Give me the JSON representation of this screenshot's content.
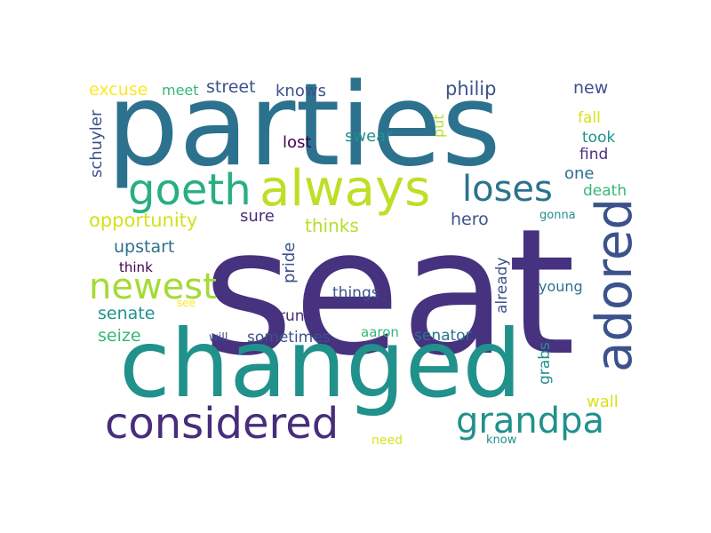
{
  "words": [
    {
      "text": "seat",
      "color": "#46327e"
    },
    {
      "text": "parties",
      "color": "#2c728e"
    },
    {
      "text": "changed",
      "color": "#21918c"
    },
    {
      "text": "always",
      "color": "#bddf26"
    },
    {
      "text": "goeth",
      "color": "#29af7f"
    },
    {
      "text": "adored",
      "color": "#3b528b"
    },
    {
      "text": "considered",
      "color": "#472d7b"
    },
    {
      "text": "grandpa",
      "color": "#21918c"
    },
    {
      "text": "newest",
      "color": "#a5db36"
    },
    {
      "text": "loses",
      "color": "#2c728e"
    },
    {
      "text": "opportunity",
      "color": "#d2e21b"
    },
    {
      "text": "philip",
      "color": "#3b528b"
    },
    {
      "text": "street",
      "color": "#3b528b"
    },
    {
      "text": "excuse",
      "color": "#fde725"
    },
    {
      "text": "meet",
      "color": "#35b779"
    },
    {
      "text": "knows",
      "color": "#3b528b"
    },
    {
      "text": "new",
      "color": "#3b528b"
    },
    {
      "text": "schuyler",
      "color": "#3b528b"
    },
    {
      "text": "fall",
      "color": "#d8e219"
    },
    {
      "text": "took",
      "color": "#21918c"
    },
    {
      "text": "find",
      "color": "#46327e"
    },
    {
      "text": "one",
      "color": "#2c728e"
    },
    {
      "text": "death",
      "color": "#35b779"
    },
    {
      "text": "swear",
      "color": "#21918c"
    },
    {
      "text": "lost",
      "color": "#440154"
    },
    {
      "text": "put",
      "color": "#b5de2b"
    },
    {
      "text": "sure",
      "color": "#472d7b"
    },
    {
      "text": "thinks",
      "color": "#b5de2b"
    },
    {
      "text": "hero",
      "color": "#3b528b"
    },
    {
      "text": "gonna",
      "color": "#21918c"
    },
    {
      "text": "upstart",
      "color": "#2c728e"
    },
    {
      "text": "think",
      "color": "#440154"
    },
    {
      "text": "pride",
      "color": "#3b528b"
    },
    {
      "text": "already",
      "color": "#3b528b"
    },
    {
      "text": "things",
      "color": "#3b528b"
    },
    {
      "text": "senate",
      "color": "#21918c"
    },
    {
      "text": "see",
      "color": "#fde725"
    },
    {
      "text": "run",
      "color": "#472d7b"
    },
    {
      "text": "young",
      "color": "#2c728e"
    },
    {
      "text": "seize",
      "color": "#35b779"
    },
    {
      "text": "sometimes",
      "color": "#3b528b"
    },
    {
      "text": "aaron",
      "color": "#35b779"
    },
    {
      "text": "senator",
      "color": "#2c728e"
    },
    {
      "text": "will",
      "color": "#3b528b"
    },
    {
      "text": "grabs",
      "color": "#21918c"
    },
    {
      "text": "wall",
      "color": "#d8e219"
    },
    {
      "text": "need",
      "color": "#d8e219"
    },
    {
      "text": "know",
      "color": "#21918c"
    }
  ]
}
